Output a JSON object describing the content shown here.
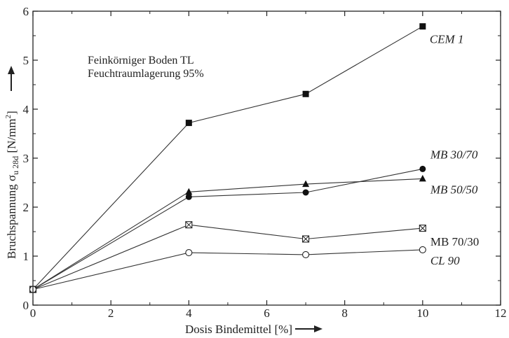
{
  "chart_data": {
    "type": "line",
    "annotation": [
      "Feinkörniger Boden TL",
      "Feuchtraumlagerung 95%"
    ],
    "xlabel": "Dosis Bindemittel [%]",
    "ylabel": {
      "prefix": "Bruchspannung σ",
      "subscript": "u 28d",
      "unit_open": "[N/mm",
      "unit_sup": "2",
      "unit_close": "]"
    },
    "xlim": [
      0,
      12
    ],
    "ylim": [
      0,
      6
    ],
    "xticks": [
      "0",
      "2",
      "4",
      "6",
      "8",
      "10",
      "12"
    ],
    "yticks": [
      "0",
      "1",
      "2",
      "3",
      "4",
      "5",
      "6"
    ],
    "grid": false,
    "series": [
      {
        "name": "CEM 1",
        "marker": "filled-square",
        "italic": true,
        "x": [
          0,
          4,
          7,
          10
        ],
        "values": [
          0.32,
          3.72,
          4.31,
          5.69
        ]
      },
      {
        "name": "MB 30/70",
        "marker": "filled-circle",
        "italic": true,
        "x": [
          0,
          4,
          7,
          10
        ],
        "values": [
          0.32,
          2.21,
          2.3,
          2.78
        ]
      },
      {
        "name": "MB 50/50",
        "marker": "filled-triangle",
        "italic": true,
        "x": [
          0,
          4,
          7,
          10
        ],
        "values": [
          0.32,
          2.31,
          2.47,
          2.58
        ]
      },
      {
        "name": "MB 70/30",
        "marker": "crossed-square",
        "italic": false,
        "x": [
          0,
          4,
          7,
          10
        ],
        "values": [
          0.32,
          1.64,
          1.35,
          1.57
        ]
      },
      {
        "name": "CL 90",
        "marker": "open-circle",
        "italic": true,
        "x": [
          0,
          4,
          7,
          10
        ],
        "values": [
          0.32,
          1.07,
          1.03,
          1.13
        ]
      }
    ]
  }
}
